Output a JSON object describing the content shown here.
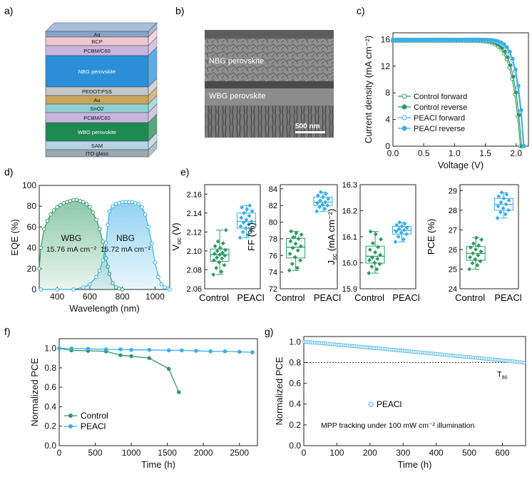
{
  "panels": {
    "a": {
      "label": "a)",
      "layers": [
        "Ag",
        "BCP",
        "PCBM/C60",
        "NBG perovskite",
        "PEDOT:PSS",
        "Au",
        "SnO2",
        "PCBM/C60",
        "WBG perovskite",
        "SAM",
        "ITO glass"
      ]
    },
    "b": {
      "label": "b)",
      "top_label": "NBG perovskite",
      "bottom_label": "WBG perovskite",
      "scalebar": "500 nm"
    }
  },
  "chart_data": [
    {
      "id": "c",
      "label": "c)",
      "type": "line",
      "xlabel": "Voltage (V)",
      "ylabel": "Current density (mA cm⁻²)",
      "xlim": [
        0,
        2.2
      ],
      "ylim": [
        0,
        17
      ],
      "xticks": [
        "0.0",
        "0.5",
        "1.0",
        "1.5",
        "2.0"
      ],
      "yticks": [
        "0",
        "4",
        "8",
        "12",
        "16"
      ],
      "legend": "bottom-left",
      "series": [
        {
          "name": "Control forward",
          "color": "#2e9b64",
          "marker": "open",
          "voc": 2.07,
          "jsc": 15.8,
          "ff": 0.77
        },
        {
          "name": "Control reverse",
          "color": "#2e9b64",
          "marker": "filled",
          "voc": 2.09,
          "jsc": 15.9,
          "ff": 0.78
        },
        {
          "name": "PEACl forward",
          "color": "#3aaee8",
          "marker": "open",
          "voc": 2.12,
          "jsc": 15.9,
          "ff": 0.82
        },
        {
          "name": "PEACl reverse",
          "color": "#3aaee8",
          "marker": "filled",
          "voc": 2.13,
          "jsc": 16.0,
          "ff": 0.83
        }
      ]
    },
    {
      "id": "d",
      "label": "d)",
      "type": "area",
      "xlabel": "Wavelength (nm)",
      "ylabel": "EQE (%)",
      "xlim": [
        290,
        1090
      ],
      "ylim": [
        0,
        100
      ],
      "xticks": [
        "400",
        "600",
        "800",
        "1000"
      ],
      "yticks": [
        "0",
        "20",
        "40",
        "60",
        "80",
        "100"
      ],
      "series": [
        {
          "name": "WBG",
          "text": "15.76 mA cm⁻²",
          "color": "#2e9b64",
          "x": [
            290,
            300,
            320,
            340,
            360,
            380,
            400,
            420,
            440,
            460,
            480,
            500,
            520,
            540,
            560,
            580,
            600,
            620,
            640,
            660,
            680,
            690,
            700,
            710,
            720,
            740,
            760,
            780,
            800
          ],
          "y": [
            20,
            40,
            58,
            66,
            72,
            76,
            79,
            81,
            83,
            84,
            85,
            86,
            86,
            85,
            84,
            82,
            79,
            74,
            67,
            58,
            46,
            38,
            30,
            22,
            15,
            6,
            2,
            1,
            0
          ]
        },
        {
          "name": "NBG",
          "text": "15.72 mA cm⁻²",
          "color": "#3aaee8",
          "x": [
            300,
            400,
            500,
            560,
            600,
            640,
            660,
            680,
            700,
            710,
            720,
            740,
            760,
            780,
            800,
            820,
            840,
            860,
            880,
            900,
            920,
            940,
            960,
            980,
            1000,
            1020,
            1040,
            1060,
            1080,
            1090
          ],
          "y": [
            0,
            0,
            0,
            2,
            5,
            12,
            18,
            28,
            45,
            62,
            75,
            80,
            82,
            83,
            84,
            84,
            84,
            84,
            83,
            82,
            79,
            72,
            60,
            44,
            26,
            12,
            5,
            2,
            1,
            0
          ]
        }
      ]
    },
    {
      "id": "e",
      "label": "e)",
      "type": "box",
      "categories": [
        "Control",
        "PEACl"
      ],
      "subplots": [
        {
          "ylabel": "V",
          "ylabel_sub": "oc",
          "ylabel_unit": "(V)",
          "ylim": [
            2.06,
            2.17
          ],
          "yticks": [
            "2.06",
            "2.08",
            "2.10",
            "2.12",
            "2.14",
            "2.16"
          ],
          "control": [
            2.075,
            2.078,
            2.082,
            2.085,
            2.088,
            2.09,
            2.092,
            2.093,
            2.095,
            2.096,
            2.097,
            2.098,
            2.1,
            2.101,
            2.103,
            2.105,
            2.108,
            2.11,
            2.122
          ],
          "peacl": [
            2.114,
            2.117,
            2.12,
            2.122,
            2.124,
            2.126,
            2.128,
            2.13,
            2.131,
            2.133,
            2.135,
            2.137,
            2.14,
            2.142,
            2.144,
            2.146,
            2.148
          ]
        },
        {
          "ylabel": "FF",
          "ylabel_sub": "",
          "ylabel_unit": "(%)",
          "ylim": [
            72,
            84.5
          ],
          "yticks": [
            "72",
            "74",
            "76",
            "78",
            "80",
            "82",
            "84"
          ],
          "control": [
            74.2,
            74.5,
            75,
            75.4,
            75.8,
            76.2,
            76.6,
            76.9,
            77.1,
            77.4,
            77.7,
            78,
            78.2,
            78.5,
            78.7,
            78.9
          ],
          "peacl": [
            81.3,
            81.6,
            81.8,
            82,
            82.1,
            82.3,
            82.4,
            82.6,
            82.8,
            83,
            83.2,
            83.4,
            83.6
          ]
        },
        {
          "ylabel": "J",
          "ylabel_sub": "sc",
          "ylabel_unit": "(mA cm⁻²)",
          "ylim": [
            15.9,
            16.3
          ],
          "yticks": [
            "15.9",
            "16.0",
            "16.1",
            "16.2",
            "16.3"
          ],
          "control": [
            15.96,
            15.975,
            15.985,
            15.995,
            16.0,
            16.01,
            16.015,
            16.02,
            16.03,
            16.04,
            16.05,
            16.06,
            16.075,
            16.09,
            16.11,
            16.12
          ],
          "peacl": [
            16.08,
            16.09,
            16.1,
            16.11,
            16.115,
            16.12,
            16.125,
            16.13,
            16.135,
            16.14,
            16.145,
            16.15,
            16.155
          ]
        },
        {
          "ylabel": "PCE",
          "ylabel_sub": "",
          "ylabel_unit": "(%)",
          "ylim": [
            24,
            29.3
          ],
          "yticks": [
            "24",
            "25",
            "26",
            "27",
            "28",
            "29"
          ],
          "control": [
            25,
            25.2,
            25.3,
            25.4,
            25.5,
            25.6,
            25.7,
            25.8,
            25.9,
            26,
            26.1,
            26.2,
            26.3,
            26.5,
            26.6
          ],
          "peacl": [
            27.6,
            27.8,
            27.9,
            28,
            28.1,
            28.2,
            28.3,
            28.4,
            28.5,
            28.6,
            28.7,
            28.8,
            28.9
          ]
        }
      ]
    },
    {
      "id": "f",
      "label": "f)",
      "type": "line",
      "xlabel": "Time (h)",
      "ylabel": "Normalized PCE",
      "xlim": [
        0,
        2750
      ],
      "ylim": [
        0,
        1.1
      ],
      "xticks": [
        "0",
        "500",
        "1000",
        "1500",
        "2000",
        "2500"
      ],
      "yticks": [
        "0.0",
        "0.2",
        "0.4",
        "0.6",
        "0.8",
        "1.0"
      ],
      "legend": "bottom-left",
      "series": [
        {
          "name": "Control",
          "color": "#2e9b64",
          "x": [
            0,
            170,
            400,
            650,
            850,
            1000,
            1250,
            1520,
            1660
          ],
          "y": [
            1.0,
            0.98,
            0.975,
            0.97,
            0.93,
            0.92,
            0.9,
            0.79,
            0.55
          ]
        },
        {
          "name": "PEACl",
          "color": "#3aaee8",
          "x": [
            0,
            170,
            400,
            650,
            850,
            1000,
            1250,
            1520,
            1700,
            1900,
            2100,
            2300,
            2500,
            2680
          ],
          "y": [
            1.0,
            1.0,
            0.995,
            0.99,
            0.99,
            0.985,
            0.985,
            0.98,
            0.98,
            0.975,
            0.97,
            0.97,
            0.965,
            0.96
          ]
        }
      ]
    },
    {
      "id": "g",
      "label": "g)",
      "type": "scatter",
      "xlabel": "Time (h)",
      "ylabel": "Normalized PCE",
      "xlim": [
        0,
        670
      ],
      "ylim": [
        0,
        1.05
      ],
      "xticks": [
        "0",
        "100",
        "200",
        "300",
        "400",
        "500",
        "600"
      ],
      "yticks": [
        "0.0",
        "0.2",
        "0.4",
        "0.6",
        "0.8",
        "1.0"
      ],
      "reference_y": 0.8,
      "reference_label": "T",
      "reference_sub": "80",
      "series": [
        {
          "name": "PEACl",
          "color": "#3aaee8",
          "start": 1.0,
          "end": 0.8,
          "x_end": 665
        }
      ],
      "annotation": "MPP tracking under 100 mW cm⁻² illumination"
    }
  ]
}
